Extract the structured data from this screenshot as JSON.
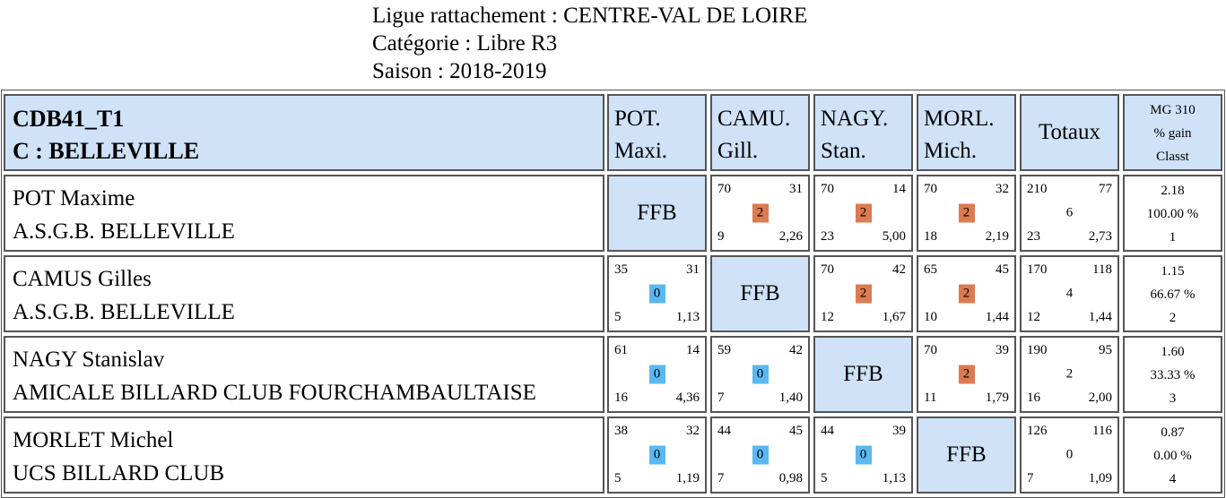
{
  "header": {
    "line1": "Ligue rattachement : CENTRE-VAL DE LOIRE",
    "line2": "Catégorie : Libre R3",
    "line3": "Saison : 2018-2019"
  },
  "table": {
    "title_line1": "CDB41_T1",
    "title_line2": "C : BELLEVILLE",
    "columns": [
      {
        "l1": "POT.",
        "l2": "Maxi."
      },
      {
        "l1": "CAMU.",
        "l2": "Gill."
      },
      {
        "l1": "NAGY.",
        "l2": "Stan."
      },
      {
        "l1": "MORL.",
        "l2": "Mich."
      }
    ],
    "totals_label": "Totaux",
    "mg_label": "MG 310",
    "gain_label": "% gain",
    "rank_label": "Classt",
    "self_label": "FFB",
    "badge_colors": {
      "win": "#dc7b52",
      "loss": "#5bb8f0"
    },
    "rows": [
      {
        "name": "POT Maxime",
        "club": "A.S.G.B. BELLEVILLE",
        "cells": [
          null,
          {
            "pts": "70",
            "opp": "31",
            "res": "2",
            "win": true,
            "rep": "9",
            "avg": "2,26"
          },
          {
            "pts": "70",
            "opp": "14",
            "res": "2",
            "win": true,
            "rep": "23",
            "avg": "5,00"
          },
          {
            "pts": "70",
            "opp": "32",
            "res": "2",
            "win": true,
            "rep": "18",
            "avg": "2,19"
          }
        ],
        "totals": {
          "pts": "210",
          "opp": "77",
          "res": "6",
          "rep": "23",
          "avg": "2,73"
        },
        "stats": {
          "mg": "2.18",
          "gain": "100.00 %",
          "rank": "1"
        }
      },
      {
        "name": "CAMUS Gilles",
        "club": "A.S.G.B. BELLEVILLE",
        "cells": [
          {
            "pts": "35",
            "opp": "31",
            "res": "0",
            "win": false,
            "rep": "5",
            "avg": "1,13"
          },
          null,
          {
            "pts": "70",
            "opp": "42",
            "res": "2",
            "win": true,
            "rep": "12",
            "avg": "1,67"
          },
          {
            "pts": "65",
            "opp": "45",
            "res": "2",
            "win": true,
            "rep": "10",
            "avg": "1,44"
          }
        ],
        "totals": {
          "pts": "170",
          "opp": "118",
          "res": "4",
          "rep": "12",
          "avg": "1,44"
        },
        "stats": {
          "mg": "1.15",
          "gain": "66.67 %",
          "rank": "2"
        }
      },
      {
        "name": "NAGY Stanislav",
        "club": "AMICALE BILLARD CLUB FOURCHAMBAULTAISE",
        "cells": [
          {
            "pts": "61",
            "opp": "14",
            "res": "0",
            "win": false,
            "rep": "16",
            "avg": "4,36"
          },
          {
            "pts": "59",
            "opp": "42",
            "res": "0",
            "win": false,
            "rep": "7",
            "avg": "1,40"
          },
          null,
          {
            "pts": "70",
            "opp": "39",
            "res": "2",
            "win": true,
            "rep": "11",
            "avg": "1,79"
          }
        ],
        "totals": {
          "pts": "190",
          "opp": "95",
          "res": "2",
          "rep": "16",
          "avg": "2,00"
        },
        "stats": {
          "mg": "1.60",
          "gain": "33.33 %",
          "rank": "3"
        }
      },
      {
        "name": "MORLET Michel",
        "club": "UCS BILLARD CLUB",
        "cells": [
          {
            "pts": "38",
            "opp": "32",
            "res": "0",
            "win": false,
            "rep": "5",
            "avg": "1,19"
          },
          {
            "pts": "44",
            "opp": "45",
            "res": "0",
            "win": false,
            "rep": "7",
            "avg": "0,98"
          },
          {
            "pts": "44",
            "opp": "39",
            "res": "0",
            "win": false,
            "rep": "5",
            "avg": "1,13"
          },
          null
        ],
        "totals": {
          "pts": "126",
          "opp": "116",
          "res": "0",
          "rep": "7",
          "avg": "1,09"
        },
        "stats": {
          "mg": "0.87",
          "gain": "0.00 %",
          "rank": "4"
        }
      }
    ]
  }
}
